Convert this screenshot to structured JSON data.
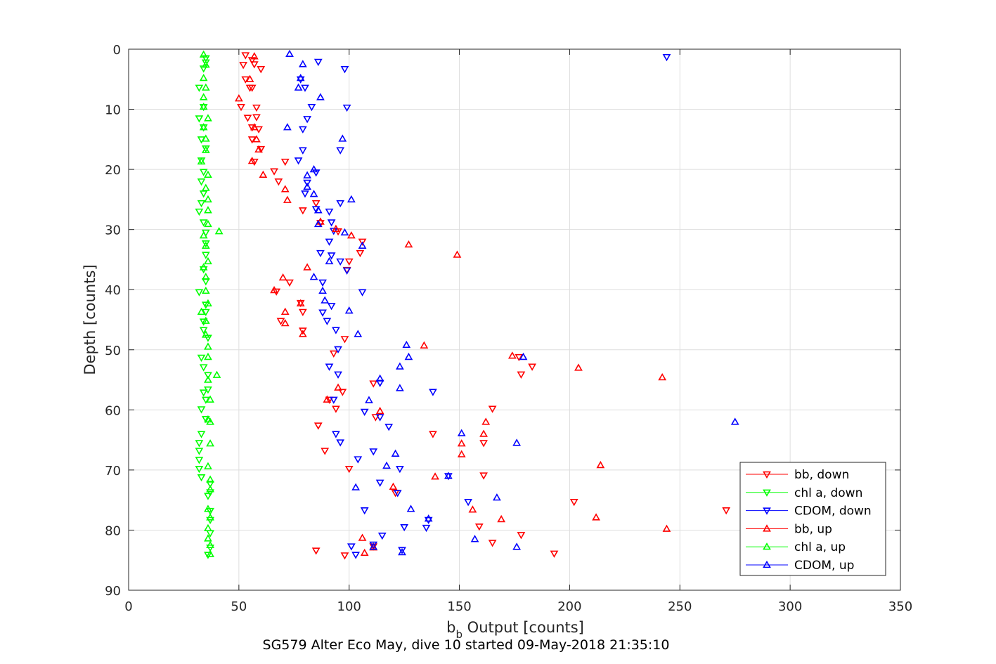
{
  "chart_data": {
    "type": "scatter",
    "title": "",
    "xlabel_main": "b",
    "xlabel_sub": "b",
    "xlabel_rest": " Output [counts]",
    "ylabel": "Depth [counts]",
    "caption": "SG579 Alter Eco May, dive 10 started 09-May-2018 21:35:10",
    "xlim": [
      0,
      350
    ],
    "ylim": [
      0,
      90
    ],
    "y_reversed": true,
    "grid": true,
    "legend_placement": "bottom-right",
    "x_ticks": [
      "0",
      "50",
      "100",
      "150",
      "200",
      "250",
      "300",
      "350"
    ],
    "y_ticks": [
      "0",
      "10",
      "20",
      "30",
      "40",
      "50",
      "60",
      "70",
      "80",
      "90"
    ],
    "series": [
      {
        "name": "bb, down",
        "color": "#ff0000",
        "marker": "triangle-down",
        "points": [
          [
            53,
            1
          ],
          [
            56,
            1.8
          ],
          [
            57,
            2.5
          ],
          [
            52,
            2.6
          ],
          [
            60,
            3.3
          ],
          [
            53,
            5
          ],
          [
            56,
            6.4
          ],
          [
            55,
            6.4
          ],
          [
            58,
            9.7
          ],
          [
            51,
            9.6
          ],
          [
            58,
            11.3
          ],
          [
            54,
            11.4
          ],
          [
            56,
            13
          ],
          [
            59,
            13.3
          ],
          [
            56,
            15
          ],
          [
            60,
            16.6
          ],
          [
            57,
            18.7
          ],
          [
            71,
            18.7
          ],
          [
            66,
            20.3
          ],
          [
            68,
            22
          ],
          [
            85,
            25.6
          ],
          [
            79,
            26.8
          ],
          [
            87,
            28.9
          ],
          [
            95,
            30.3
          ],
          [
            106,
            32
          ],
          [
            105,
            33.9
          ],
          [
            100,
            35.3
          ],
          [
            99,
            36.7
          ],
          [
            73,
            38.8
          ],
          [
            67,
            40.3
          ],
          [
            78,
            42.2
          ],
          [
            79,
            43.7
          ],
          [
            69,
            45.2
          ],
          [
            79,
            46.8
          ],
          [
            98,
            48.2
          ],
          [
            93,
            50.6
          ],
          [
            177,
            51.2
          ],
          [
            183,
            52.8
          ],
          [
            178,
            54.1
          ],
          [
            111,
            55.6
          ],
          [
            97,
            57
          ],
          [
            91,
            58.3
          ],
          [
            94,
            59.8
          ],
          [
            165,
            59.8
          ],
          [
            112,
            61.2
          ],
          [
            86,
            62.6
          ],
          [
            138,
            64
          ],
          [
            161,
            65.5
          ],
          [
            89,
            66.8
          ],
          [
            100,
            69.8
          ],
          [
            161,
            70.9
          ],
          [
            121,
            73.8
          ],
          [
            202,
            75.3
          ],
          [
            271,
            76.7
          ],
          [
            159,
            79.4
          ],
          [
            178,
            80.8
          ],
          [
            165,
            82.1
          ],
          [
            111,
            82.7
          ],
          [
            85,
            83.4
          ],
          [
            193,
            83.9
          ],
          [
            98,
            84.2
          ]
        ]
      },
      {
        "name": "chl a, down",
        "color": "#00ff00",
        "marker": "triangle-down",
        "points": [
          [
            35,
            1.5
          ],
          [
            35,
            2.2
          ],
          [
            34,
            3.2
          ],
          [
            32,
            6.4
          ],
          [
            34,
            9.6
          ],
          [
            32,
            11.5
          ],
          [
            34,
            13
          ],
          [
            33,
            15
          ],
          [
            35,
            16.5
          ],
          [
            33,
            18.5
          ],
          [
            34,
            20.4
          ],
          [
            33,
            22
          ],
          [
            34,
            24
          ],
          [
            33,
            25.6
          ],
          [
            32,
            27
          ],
          [
            34,
            28.8
          ],
          [
            35,
            30.5
          ],
          [
            35,
            32.3
          ],
          [
            35,
            34.2
          ],
          [
            34,
            36.6
          ],
          [
            35,
            38.6
          ],
          [
            32,
            40.4
          ],
          [
            35,
            42.5
          ],
          [
            35,
            43.7
          ],
          [
            34,
            45.3
          ],
          [
            34,
            46.7
          ],
          [
            36,
            48
          ],
          [
            33,
            51.3
          ],
          [
            34,
            52.9
          ],
          [
            36,
            54.2
          ],
          [
            36,
            56.6
          ],
          [
            34,
            57.1
          ],
          [
            35,
            58.3
          ],
          [
            33,
            59.9
          ],
          [
            35,
            61.5
          ],
          [
            33,
            64
          ],
          [
            32,
            65.5
          ],
          [
            32,
            66.8
          ],
          [
            32,
            68.3
          ],
          [
            32,
            69.8
          ],
          [
            33,
            71.2
          ],
          [
            37,
            72.3
          ],
          [
            37,
            73.7
          ],
          [
            36,
            74.3
          ],
          [
            37,
            76.8
          ],
          [
            37,
            78.3
          ],
          [
            37,
            80.5
          ],
          [
            37,
            82.9
          ],
          [
            36,
            84.1
          ]
        ]
      },
      {
        "name": "CDOM, down",
        "color": "#0000ff",
        "marker": "triangle-down",
        "points": [
          [
            244,
            1.3
          ],
          [
            86,
            2.1
          ],
          [
            98,
            3.3
          ],
          [
            80,
            6.4
          ],
          [
            78,
            5
          ],
          [
            83,
            9.6
          ],
          [
            99,
            9.7
          ],
          [
            81,
            11.6
          ],
          [
            79,
            13.3
          ],
          [
            96,
            16.8
          ],
          [
            79,
            16.8
          ],
          [
            77,
            18.5
          ],
          [
            85,
            20.5
          ],
          [
            81,
            22.2
          ],
          [
            80,
            24
          ],
          [
            96,
            25.6
          ],
          [
            85,
            26.6
          ],
          [
            91,
            27
          ],
          [
            92,
            28.8
          ],
          [
            93,
            30.2
          ],
          [
            91,
            32
          ],
          [
            87,
            33.9
          ],
          [
            92,
            34.3
          ],
          [
            96,
            35.3
          ],
          [
            99,
            36.8
          ],
          [
            88,
            38.8
          ],
          [
            106,
            40.4
          ],
          [
            92,
            42.7
          ],
          [
            88,
            43.8
          ],
          [
            90,
            45.2
          ],
          [
            94,
            46.7
          ],
          [
            95,
            49.9
          ],
          [
            91,
            52.8
          ],
          [
            95,
            54.1
          ],
          [
            114,
            55.5
          ],
          [
            138,
            57
          ],
          [
            93,
            58.3
          ],
          [
            107,
            60.3
          ],
          [
            114,
            61.2
          ],
          [
            118,
            62.8
          ],
          [
            94,
            64
          ],
          [
            96,
            65.4
          ],
          [
            111,
            66.9
          ],
          [
            104,
            68.2
          ],
          [
            123,
            69.8
          ],
          [
            145,
            71
          ],
          [
            114,
            72.1
          ],
          [
            122,
            73.8
          ],
          [
            154,
            75.3
          ],
          [
            107,
            76.7
          ],
          [
            136,
            78.3
          ],
          [
            135,
            79.6
          ],
          [
            125,
            79.5
          ],
          [
            115,
            80.9
          ],
          [
            111,
            82.4
          ],
          [
            101,
            82.7
          ],
          [
            124,
            83.3
          ],
          [
            103,
            84.1
          ]
        ]
      },
      {
        "name": "bb, up",
        "color": "#ff0000",
        "marker": "triangle-up",
        "points": [
          [
            57,
            1.2
          ],
          [
            55,
            5
          ],
          [
            50,
            8.2
          ],
          [
            57,
            13
          ],
          [
            58,
            15
          ],
          [
            59,
            16.7
          ],
          [
            56,
            18.6
          ],
          [
            61,
            20.9
          ],
          [
            71,
            23.3
          ],
          [
            72,
            25.1
          ],
          [
            87,
            28.7
          ],
          [
            94,
            29.9
          ],
          [
            101,
            31
          ],
          [
            127,
            32.5
          ],
          [
            149,
            34.2
          ],
          [
            81,
            36.3
          ],
          [
            70,
            38
          ],
          [
            66,
            40.1
          ],
          [
            78,
            42.3
          ],
          [
            71,
            43.7
          ],
          [
            71,
            45.6
          ],
          [
            79,
            47.4
          ],
          [
            134,
            49.3
          ],
          [
            174,
            51
          ],
          [
            204,
            53
          ],
          [
            242,
            54.6
          ],
          [
            95,
            56.3
          ],
          [
            90,
            58.3
          ],
          [
            114,
            60.2
          ],
          [
            162,
            62
          ],
          [
            161,
            64
          ],
          [
            151,
            65.6
          ],
          [
            151,
            67.4
          ],
          [
            214,
            69.2
          ],
          [
            139,
            71.1
          ],
          [
            120,
            72.8
          ],
          [
            156,
            76.6
          ],
          [
            169,
            78.2
          ],
          [
            212,
            77.9
          ],
          [
            244,
            79.8
          ],
          [
            106,
            81.3
          ],
          [
            111,
            82.9
          ],
          [
            107,
            83.8
          ]
        ]
      },
      {
        "name": "chl a, up",
        "color": "#00ff00",
        "marker": "triangle-up",
        "points": [
          [
            34,
            0.9
          ],
          [
            35,
            2.6
          ],
          [
            34,
            4.8
          ],
          [
            35,
            6.4
          ],
          [
            34,
            8
          ],
          [
            34,
            9.6
          ],
          [
            36,
            11.5
          ],
          [
            34,
            13
          ],
          [
            35,
            14.9
          ],
          [
            35,
            16.8
          ],
          [
            33,
            18.7
          ],
          [
            36,
            20.9
          ],
          [
            35,
            23.1
          ],
          [
            36,
            25
          ],
          [
            36,
            26.8
          ],
          [
            36,
            29.1
          ],
          [
            41,
            30.3
          ],
          [
            34,
            31
          ],
          [
            35,
            32.7
          ],
          [
            36,
            35.3
          ],
          [
            34,
            36.3
          ],
          [
            35,
            37.9
          ],
          [
            35,
            40.2
          ],
          [
            36,
            42.3
          ],
          [
            33,
            43.7
          ],
          [
            35,
            45.2
          ],
          [
            35,
            47.5
          ],
          [
            36,
            49.5
          ],
          [
            36,
            51.2
          ],
          [
            40,
            54.2
          ],
          [
            36,
            55
          ],
          [
            37,
            58.3
          ],
          [
            36,
            61.6
          ],
          [
            37,
            62
          ],
          [
            37,
            65.6
          ],
          [
            36,
            69.4
          ],
          [
            37,
            71.6
          ],
          [
            37,
            73.2
          ],
          [
            36,
            76.5
          ],
          [
            37,
            77.9
          ],
          [
            36,
            79.7
          ],
          [
            36,
            81.4
          ],
          [
            37,
            82.5
          ],
          [
            37,
            84
          ]
        ]
      },
      {
        "name": "CDOM, up",
        "color": "#0000ff",
        "marker": "triangle-up",
        "points": [
          [
            73,
            0.8
          ],
          [
            79,
            2.5
          ],
          [
            78,
            4.8
          ],
          [
            77,
            6.4
          ],
          [
            87,
            8
          ],
          [
            72,
            13
          ],
          [
            97,
            14.9
          ],
          [
            84,
            20
          ],
          [
            81,
            21
          ],
          [
            81,
            22.9
          ],
          [
            84,
            24.1
          ],
          [
            101,
            25
          ],
          [
            86,
            26.8
          ],
          [
            86,
            29.1
          ],
          [
            98,
            30.5
          ],
          [
            106,
            32.7
          ],
          [
            91,
            35.3
          ],
          [
            84,
            37.9
          ],
          [
            88,
            40.2
          ],
          [
            89,
            41.8
          ],
          [
            100,
            43.5
          ],
          [
            104,
            47.4
          ],
          [
            126,
            49.2
          ],
          [
            127,
            51.2
          ],
          [
            179,
            51.2
          ],
          [
            123,
            52.8
          ],
          [
            114,
            54.8
          ],
          [
            123,
            56.4
          ],
          [
            109,
            58.4
          ],
          [
            275,
            62
          ],
          [
            151,
            63.9
          ],
          [
            176,
            65.5
          ],
          [
            121,
            67.3
          ],
          [
            117,
            69.3
          ],
          [
            145,
            71
          ],
          [
            103,
            72.9
          ],
          [
            167,
            74.6
          ],
          [
            128,
            76.5
          ],
          [
            136,
            78.1
          ],
          [
            157,
            81.5
          ],
          [
            176,
            82.8
          ],
          [
            124,
            83.7
          ],
          [
            111,
            82.8
          ]
        ]
      }
    ]
  }
}
